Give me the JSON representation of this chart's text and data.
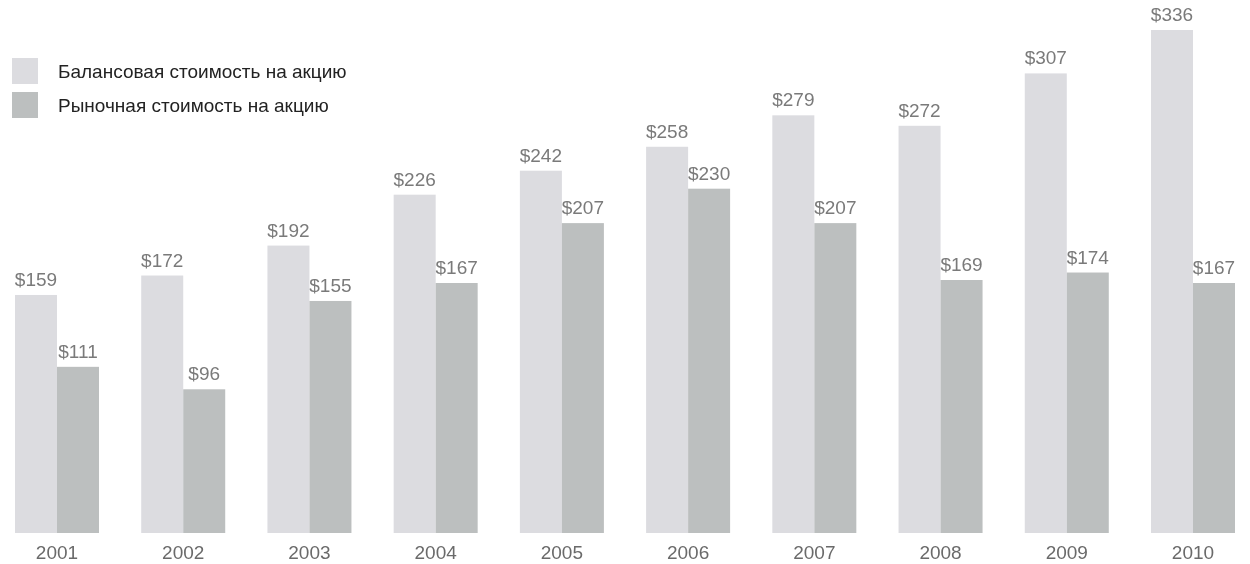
{
  "chart_data": {
    "type": "bar",
    "categories": [
      "2001",
      "2002",
      "2003",
      "2004",
      "2005",
      "2006",
      "2007",
      "2008",
      "2009",
      "2010"
    ],
    "series": [
      {
        "name": "Балансовая стоимость на акцию",
        "color": "#dcdce0",
        "values": [
          159,
          172,
          192,
          226,
          242,
          258,
          279,
          272,
          307,
          336
        ],
        "value_labels": [
          "$159",
          "$172",
          "$192",
          "$226",
          "$242",
          "$258",
          "$279",
          "$272",
          "$307",
          "$336"
        ]
      },
      {
        "name": "Рыночная стоимость на акцию",
        "color": "#bcbfbf",
        "values": [
          111,
          96,
          155,
          167,
          207,
          230,
          207,
          169,
          174,
          167
        ],
        "value_labels": [
          "$111",
          "$96",
          "$155",
          "$167",
          "$207",
          "$230",
          "$207",
          "$169",
          "$174",
          "$167"
        ]
      }
    ],
    "legend": "top left"
  }
}
